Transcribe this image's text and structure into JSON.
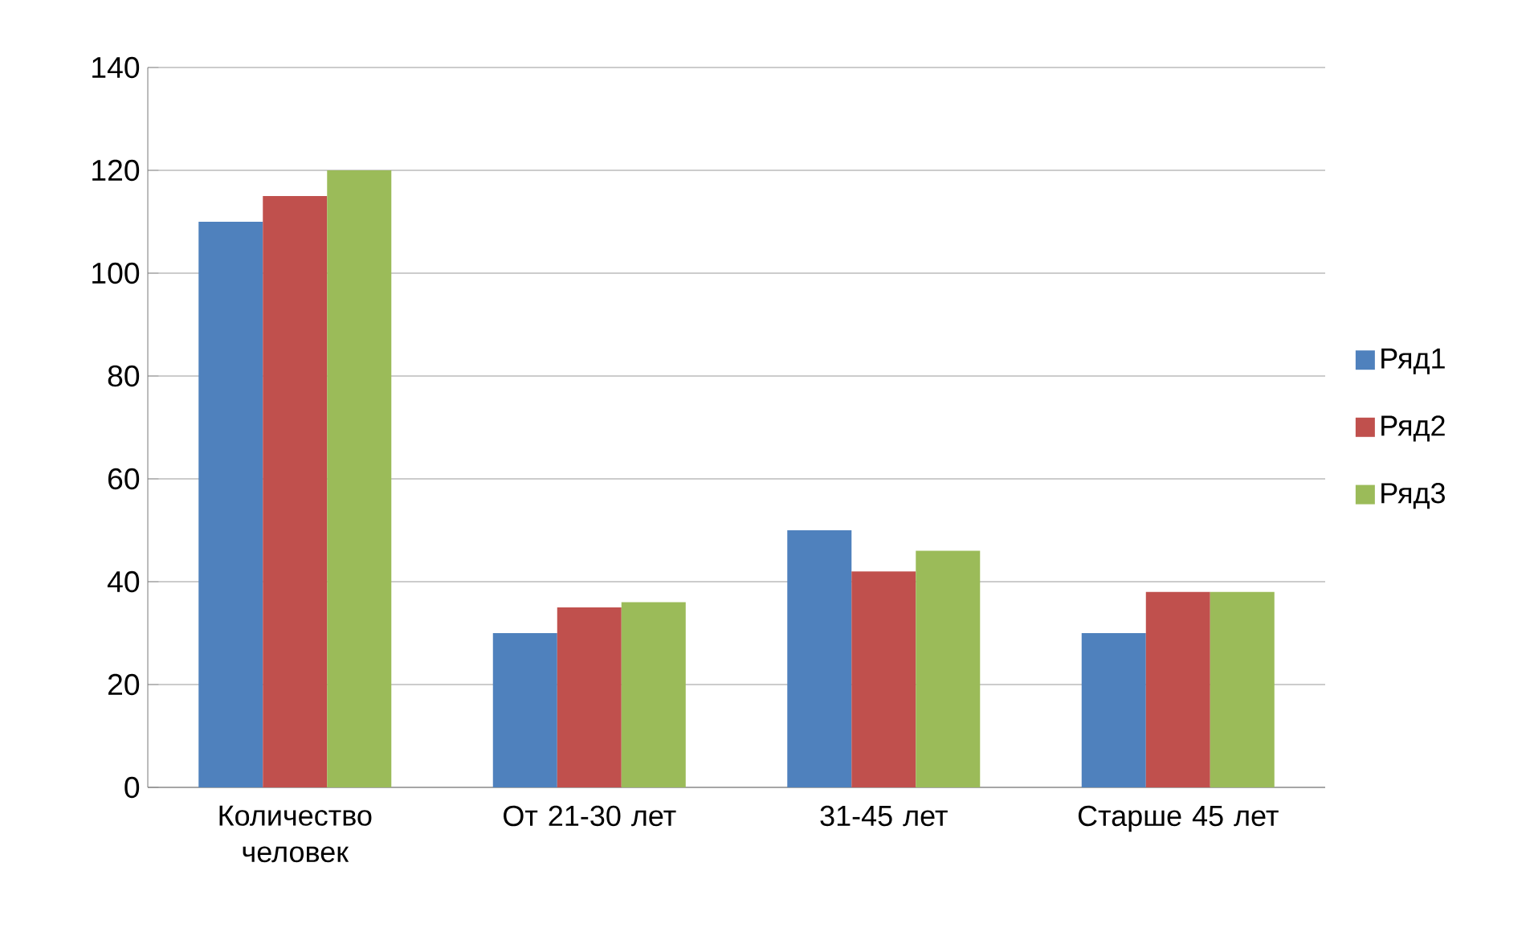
{
  "chart_data": {
    "type": "bar",
    "categories": [
      "Количество человек",
      "От 21-30 лет",
      "31-45 лет",
      "Старше 45 лет"
    ],
    "series": [
      {
        "name": "Ряд1",
        "color": "#4f81bd",
        "values": [
          110,
          30,
          50,
          30
        ]
      },
      {
        "name": "Ряд2",
        "color": "#c0504d",
        "values": [
          115,
          35,
          42,
          38
        ]
      },
      {
        "name": "Ряд3",
        "color": "#9bbb59",
        "values": [
          120,
          36,
          46,
          38
        ]
      }
    ],
    "ylim": [
      0,
      140
    ],
    "yticks": [
      0,
      20,
      40,
      60,
      80,
      100,
      120,
      140
    ],
    "grid": "y",
    "legend": "right"
  }
}
